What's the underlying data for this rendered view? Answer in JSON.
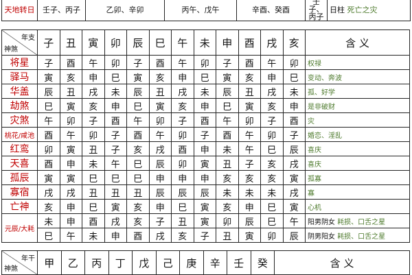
{
  "top_row": {
    "label": "天地转日",
    "cells": [
      "壬子、丙子",
      "乙卯、辛卯",
      "丙午、戊午",
      "辛酉、癸酉",
      "壬子、丙子"
    ],
    "pillar": "日柱",
    "meaning": "死亡之灾"
  },
  "table": {
    "corner_top": "年支",
    "corner_bottom": "神煞",
    "columns": [
      "子",
      "丑",
      "寅",
      "卯",
      "辰",
      "巳",
      "午",
      "未",
      "申",
      "酉",
      "戌",
      "亥"
    ],
    "meaning_header": "含 义",
    "rows": [
      {
        "name": "将星",
        "cells": [
          "子",
          "酉",
          "午",
          "卯",
          "子",
          "酉",
          "午",
          "卯",
          "子",
          "酉",
          "午",
          "卯"
        ],
        "meaning": "权禄"
      },
      {
        "name": "驿马",
        "cells": [
          "寅",
          "亥",
          "申",
          "巳",
          "寅",
          "亥",
          "申",
          "巳",
          "寅",
          "亥",
          "申",
          "巳"
        ],
        "meaning": "变动、奔波"
      },
      {
        "name": "华盖",
        "cells": [
          "辰",
          "丑",
          "戌",
          "未",
          "辰",
          "丑",
          "戌",
          "未",
          "辰",
          "丑",
          "戌",
          "未"
        ],
        "meaning": "孤、好学"
      },
      {
        "name": "劫煞",
        "cells": [
          "巳",
          "寅",
          "亥",
          "申",
          "巳",
          "寅",
          "亥",
          "申",
          "巳",
          "寅",
          "亥",
          "申"
        ],
        "meaning": "是非破财"
      },
      {
        "name": "灾煞",
        "cells": [
          "午",
          "卯",
          "子",
          "酉",
          "午",
          "卯",
          "子",
          "酉",
          "午",
          "卯",
          "子",
          "酉"
        ],
        "meaning": "灾"
      },
      {
        "name": "桃花/咸池",
        "cells": [
          "酉",
          "午",
          "卯",
          "子",
          "酉",
          "午",
          "卯",
          "子",
          "酉",
          "午",
          "卯",
          "子"
        ],
        "meaning": "婚恋、淫乱"
      },
      {
        "name": "红鸾",
        "cells": [
          "卯",
          "寅",
          "丑",
          "子",
          "亥",
          "戌",
          "酉",
          "申",
          "未",
          "午",
          "巳",
          "辰"
        ],
        "meaning": "喜庆"
      },
      {
        "name": "天喜",
        "cells": [
          "酉",
          "申",
          "未",
          "午",
          "巳",
          "辰",
          "卯",
          "寅",
          "丑",
          "子",
          "亥",
          "戌"
        ],
        "meaning": "喜庆"
      },
      {
        "name": "孤辰",
        "cells": [
          "寅",
          "寅",
          "巳",
          "巳",
          "巳",
          "申",
          "申",
          "申",
          "亥",
          "亥",
          "亥",
          "寅"
        ],
        "meaning": "孤寡"
      },
      {
        "name": "寡宿",
        "cells": [
          "戌",
          "戌",
          "丑",
          "丑",
          "丑",
          "辰",
          "辰",
          "辰",
          "未",
          "未",
          "未",
          "戌"
        ],
        "meaning": "寡"
      },
      {
        "name": "亡神",
        "cells": [
          "亥",
          "申",
          "巳",
          "寅",
          "亥",
          "申",
          "巳",
          "寅",
          "亥",
          "申",
          "巳",
          "寅"
        ],
        "meaning": "心机"
      }
    ],
    "yuanchen": {
      "name": "元辰/大耗",
      "rows": [
        {
          "cells": [
            "未",
            "申",
            "酉",
            "戌",
            "亥",
            "子",
            "丑",
            "寅",
            "卯",
            "辰",
            "巳",
            "午"
          ],
          "condition": "阳男阴女",
          "meaning": "耗损、口舌之星"
        },
        {
          "cells": [
            "巳",
            "午",
            "未",
            "申",
            "酉",
            "戌",
            "亥",
            "子",
            "丑",
            "寅",
            "卯",
            "辰"
          ],
          "condition": "阴男阳女",
          "meaning": "耗损、口舌之星"
        }
      ]
    }
  },
  "bottom_header": {
    "corner_top": "年干",
    "corner_bottom": "神煞",
    "columns": [
      "甲",
      "乙",
      "丙",
      "丁",
      "戊",
      "己",
      "庚",
      "辛",
      "壬",
      "癸"
    ],
    "meaning_header": "含 义"
  }
}
